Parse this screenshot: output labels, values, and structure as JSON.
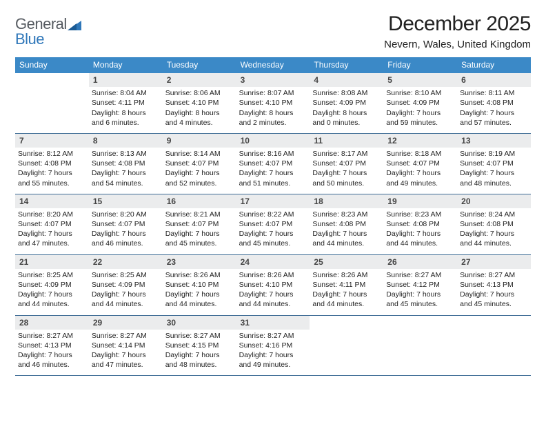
{
  "brand": {
    "text1": "General",
    "text2": "Blue"
  },
  "title": "December 2025",
  "location": "Nevern, Wales, United Kingdom",
  "colors": {
    "header_bg": "#3b89c7",
    "header_text": "#ffffff",
    "daynum_bg": "#ebeced",
    "rule": "#3b6a94",
    "brand_gray": "#555a60",
    "brand_blue": "#2f77b9"
  },
  "weekdays": [
    "Sunday",
    "Monday",
    "Tuesday",
    "Wednesday",
    "Thursday",
    "Friday",
    "Saturday"
  ],
  "start_offset": 1,
  "days": [
    {
      "n": "1",
      "sr": "8:04 AM",
      "ss": "4:11 PM",
      "dl": "8 hours and 6 minutes."
    },
    {
      "n": "2",
      "sr": "8:06 AM",
      "ss": "4:10 PM",
      "dl": "8 hours and 4 minutes."
    },
    {
      "n": "3",
      "sr": "8:07 AM",
      "ss": "4:10 PM",
      "dl": "8 hours and 2 minutes."
    },
    {
      "n": "4",
      "sr": "8:08 AM",
      "ss": "4:09 PM",
      "dl": "8 hours and 0 minutes."
    },
    {
      "n": "5",
      "sr": "8:10 AM",
      "ss": "4:09 PM",
      "dl": "7 hours and 59 minutes."
    },
    {
      "n": "6",
      "sr": "8:11 AM",
      "ss": "4:08 PM",
      "dl": "7 hours and 57 minutes."
    },
    {
      "n": "7",
      "sr": "8:12 AM",
      "ss": "4:08 PM",
      "dl": "7 hours and 55 minutes."
    },
    {
      "n": "8",
      "sr": "8:13 AM",
      "ss": "4:08 PM",
      "dl": "7 hours and 54 minutes."
    },
    {
      "n": "9",
      "sr": "8:14 AM",
      "ss": "4:07 PM",
      "dl": "7 hours and 52 minutes."
    },
    {
      "n": "10",
      "sr": "8:16 AM",
      "ss": "4:07 PM",
      "dl": "7 hours and 51 minutes."
    },
    {
      "n": "11",
      "sr": "8:17 AM",
      "ss": "4:07 PM",
      "dl": "7 hours and 50 minutes."
    },
    {
      "n": "12",
      "sr": "8:18 AM",
      "ss": "4:07 PM",
      "dl": "7 hours and 49 minutes."
    },
    {
      "n": "13",
      "sr": "8:19 AM",
      "ss": "4:07 PM",
      "dl": "7 hours and 48 minutes."
    },
    {
      "n": "14",
      "sr": "8:20 AM",
      "ss": "4:07 PM",
      "dl": "7 hours and 47 minutes."
    },
    {
      "n": "15",
      "sr": "8:20 AM",
      "ss": "4:07 PM",
      "dl": "7 hours and 46 minutes."
    },
    {
      "n": "16",
      "sr": "8:21 AM",
      "ss": "4:07 PM",
      "dl": "7 hours and 45 minutes."
    },
    {
      "n": "17",
      "sr": "8:22 AM",
      "ss": "4:07 PM",
      "dl": "7 hours and 45 minutes."
    },
    {
      "n": "18",
      "sr": "8:23 AM",
      "ss": "4:08 PM",
      "dl": "7 hours and 44 minutes."
    },
    {
      "n": "19",
      "sr": "8:23 AM",
      "ss": "4:08 PM",
      "dl": "7 hours and 44 minutes."
    },
    {
      "n": "20",
      "sr": "8:24 AM",
      "ss": "4:08 PM",
      "dl": "7 hours and 44 minutes."
    },
    {
      "n": "21",
      "sr": "8:25 AM",
      "ss": "4:09 PM",
      "dl": "7 hours and 44 minutes."
    },
    {
      "n": "22",
      "sr": "8:25 AM",
      "ss": "4:09 PM",
      "dl": "7 hours and 44 minutes."
    },
    {
      "n": "23",
      "sr": "8:26 AM",
      "ss": "4:10 PM",
      "dl": "7 hours and 44 minutes."
    },
    {
      "n": "24",
      "sr": "8:26 AM",
      "ss": "4:10 PM",
      "dl": "7 hours and 44 minutes."
    },
    {
      "n": "25",
      "sr": "8:26 AM",
      "ss": "4:11 PM",
      "dl": "7 hours and 44 minutes."
    },
    {
      "n": "26",
      "sr": "8:27 AM",
      "ss": "4:12 PM",
      "dl": "7 hours and 45 minutes."
    },
    {
      "n": "27",
      "sr": "8:27 AM",
      "ss": "4:13 PM",
      "dl": "7 hours and 45 minutes."
    },
    {
      "n": "28",
      "sr": "8:27 AM",
      "ss": "4:13 PM",
      "dl": "7 hours and 46 minutes."
    },
    {
      "n": "29",
      "sr": "8:27 AM",
      "ss": "4:14 PM",
      "dl": "7 hours and 47 minutes."
    },
    {
      "n": "30",
      "sr": "8:27 AM",
      "ss": "4:15 PM",
      "dl": "7 hours and 48 minutes."
    },
    {
      "n": "31",
      "sr": "8:27 AM",
      "ss": "4:16 PM",
      "dl": "7 hours and 49 minutes."
    }
  ],
  "labels": {
    "sunrise": "Sunrise: ",
    "sunset": "Sunset: ",
    "daylight": "Daylight: "
  }
}
